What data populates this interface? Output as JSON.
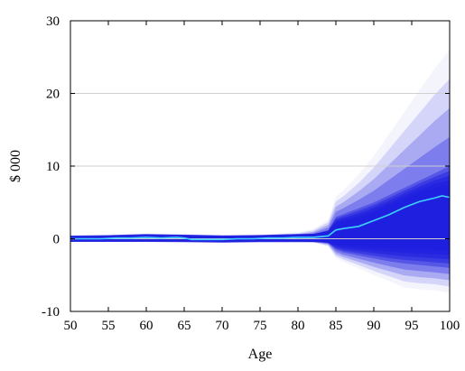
{
  "chart_data": {
    "type": "area",
    "title": "",
    "xlabel": "Age",
    "ylabel": "$ 000",
    "xlim": [
      50,
      100
    ],
    "ylim": [
      -10,
      30
    ],
    "x_ticks": [
      50,
      55,
      60,
      65,
      70,
      75,
      80,
      85,
      90,
      95,
      100
    ],
    "y_ticks": [
      -10,
      0,
      10,
      20,
      30
    ],
    "x_tick_labels": [
      "50",
      "55",
      "60",
      "65",
      "70",
      "75",
      "80",
      "85",
      "90",
      "95",
      "100"
    ],
    "y_tick_labels": [
      "-10",
      "0",
      "10",
      "20",
      "30"
    ],
    "grid": "horizontal",
    "colors": {
      "fan": "#1f1fe0",
      "median": "#3fd0ff",
      "grid": "#d0d0d0"
    },
    "series": [
      {
        "type": "line",
        "x": [
          50,
          52,
          54,
          56,
          58,
          60,
          62,
          64,
          65,
          66,
          68,
          70,
          72,
          74,
          76,
          78,
          80,
          82,
          84,
          85,
          86,
          88,
          90,
          92,
          94,
          96,
          98,
          99,
          100
        ],
        "values": [
          0,
          0,
          0,
          0.1,
          0.1,
          0.2,
          0.1,
          0.2,
          0.1,
          -0.1,
          -0.1,
          -0.1,
          0,
          0,
          0.1,
          0.1,
          0.2,
          0.2,
          0.4,
          1.2,
          1.4,
          1.7,
          2.5,
          3.3,
          4.3,
          5.1,
          5.6,
          5.9,
          5.7
        ]
      },
      {
        "type": "band",
        "x": [
          50,
          55,
          60,
          65,
          70,
          75,
          80,
          82,
          84,
          85,
          86,
          88,
          90,
          92,
          94,
          96,
          98,
          100
        ],
        "lower_5": [
          -0.2,
          -0.2,
          -0.2,
          -0.4,
          -0.3,
          -0.3,
          -0.4,
          -0.6,
          -1.2,
          -3.0,
          -3.5,
          -4.5,
          -5.6,
          -6.5,
          -7.5,
          -7.8,
          -7.9,
          -8.3
        ],
        "lower_25": [
          -0.1,
          -0.1,
          -0.1,
          -0.2,
          -0.2,
          -0.2,
          -0.2,
          -0.3,
          -0.6,
          -1.5,
          -1.9,
          -2.3,
          -2.7,
          -3.1,
          -3.4,
          -3.6,
          -3.8,
          -4.0
        ],
        "upper_75": [
          0.1,
          0.2,
          0.3,
          0.3,
          0.2,
          0.3,
          0.4,
          0.6,
          1.2,
          3.0,
          3.4,
          4.2,
          5.0,
          6.0,
          7.0,
          8.0,
          9.0,
          10.0
        ],
        "upper_95": [
          0.3,
          0.4,
          0.6,
          0.8,
          0.5,
          0.7,
          1.0,
          1.5,
          3.0,
          6.5,
          7.5,
          10.0,
          13.0,
          16.5,
          20.0,
          23.5,
          27.0,
          30.0
        ]
      }
    ]
  }
}
